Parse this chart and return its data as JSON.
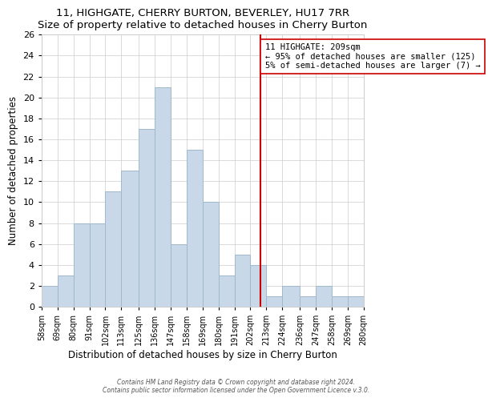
{
  "title": "11, HIGHGATE, CHERRY BURTON, BEVERLEY, HU17 7RR",
  "subtitle": "Size of property relative to detached houses in Cherry Burton",
  "xlabel": "Distribution of detached houses by size in Cherry Burton",
  "ylabel": "Number of detached properties",
  "bin_labels": [
    "58sqm",
    "69sqm",
    "80sqm",
    "91sqm",
    "102sqm",
    "113sqm",
    "125sqm",
    "136sqm",
    "147sqm",
    "158sqm",
    "169sqm",
    "180sqm",
    "191sqm",
    "202sqm",
    "213sqm",
    "224sqm",
    "236sqm",
    "247sqm",
    "258sqm",
    "269sqm",
    "280sqm"
  ],
  "bar_heights": [
    2,
    3,
    8,
    8,
    11,
    13,
    17,
    21,
    6,
    15,
    10,
    3,
    5,
    4,
    1,
    2,
    1,
    2,
    1,
    1
  ],
  "bar_color": "#c8d8e8",
  "bar_edge_color": "#a0b8cc",
  "vline_x": 209,
  "vline_color": "#cc0000",
  "ylim": [
    0,
    26
  ],
  "yticks": [
    0,
    2,
    4,
    6,
    8,
    10,
    12,
    14,
    16,
    18,
    20,
    22,
    24,
    26
  ],
  "annotation_title": "11 HIGHGATE: 209sqm",
  "annotation_line1": "← 95% of detached houses are smaller (125)",
  "annotation_line2": "5% of semi-detached houses are larger (7) →",
  "annotation_box_color": "#ffffff",
  "annotation_box_edge": "#cc0000",
  "footer1": "Contains HM Land Registry data © Crown copyright and database right 2024.",
  "footer2": "Contains public sector information licensed under the Open Government Licence v.3.0.",
  "bin_edges": [
    58,
    69,
    80,
    91,
    102,
    113,
    125,
    136,
    147,
    158,
    169,
    180,
    191,
    202,
    213,
    224,
    236,
    247,
    258,
    269,
    280
  ]
}
